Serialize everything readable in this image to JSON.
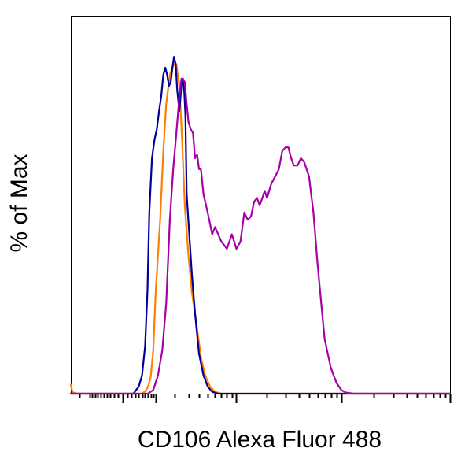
{
  "chart_data": {
    "type": "line",
    "title": "",
    "xlabel": "CD106 Alexa Fluor 488",
    "ylabel": "% of Max",
    "x_scale": "log",
    "xlim": [
      -200,
      100000
    ],
    "ylim": [
      0,
      100
    ],
    "grid": false,
    "legend": "none",
    "x_major_ticks": [
      0,
      100,
      1000,
      10000,
      100000
    ],
    "x_minor_ticks": [
      -150,
      -100,
      -90,
      -80,
      -70,
      -60,
      -50,
      -40,
      -30,
      -20,
      -10,
      10,
      20,
      30,
      40,
      50,
      60,
      70,
      80,
      90,
      200,
      300,
      400,
      500,
      600,
      700,
      800,
      900,
      2000,
      3000,
      4000,
      5000,
      6000,
      7000,
      8000,
      9000,
      20000,
      30000,
      40000,
      50000,
      60000,
      70000,
      80000,
      90000
    ],
    "series": [
      {
        "color": "#ff8000",
        "points": [
          [
            -200,
            2.5
          ],
          [
            -190,
            0.5
          ],
          [
            -170,
            0
          ],
          [
            50,
            0
          ],
          [
            60,
            0.6
          ],
          [
            70,
            1.9
          ],
          [
            80,
            4.5
          ],
          [
            90,
            12
          ],
          [
            100,
            28
          ],
          [
            120,
            48
          ],
          [
            135,
            67
          ],
          [
            150,
            80
          ],
          [
            170,
            88
          ],
          [
            185,
            90
          ],
          [
            195,
            91
          ],
          [
            210,
            91
          ],
          [
            230,
            85
          ],
          [
            250,
            70
          ],
          [
            270,
            52
          ],
          [
            300,
            38
          ],
          [
            330,
            28
          ],
          [
            380,
            18
          ],
          [
            420,
            10
          ],
          [
            470,
            5
          ],
          [
            530,
            2
          ],
          [
            600,
            0.5
          ],
          [
            700,
            0
          ],
          [
            100000,
            0
          ]
        ]
      },
      {
        "color": "#000099",
        "points": [
          [
            -200,
            0
          ],
          [
            25,
            0
          ],
          [
            40,
            2
          ],
          [
            50,
            5
          ],
          [
            60,
            13
          ],
          [
            68,
            28
          ],
          [
            75,
            50
          ],
          [
            85,
            65
          ],
          [
            95,
            70
          ],
          [
            105,
            73
          ],
          [
            115,
            78
          ],
          [
            125,
            82
          ],
          [
            135,
            88
          ],
          [
            145,
            90
          ],
          [
            155,
            88
          ],
          [
            165,
            85
          ],
          [
            175,
            86
          ],
          [
            185,
            90
          ],
          [
            195,
            93
          ],
          [
            205,
            91
          ],
          [
            215,
            84
          ],
          [
            230,
            78
          ],
          [
            245,
            85
          ],
          [
            255,
            87
          ],
          [
            265,
            84
          ],
          [
            275,
            77
          ],
          [
            285,
            55
          ],
          [
            305,
            45
          ],
          [
            330,
            33
          ],
          [
            360,
            22
          ],
          [
            400,
            11
          ],
          [
            450,
            5
          ],
          [
            500,
            2
          ],
          [
            560,
            0.5
          ],
          [
            650,
            0
          ],
          [
            100000,
            0
          ]
        ]
      },
      {
        "color": "#a600a6",
        "points": [
          [
            -200,
            0
          ],
          [
            70,
            0
          ],
          [
            90,
            1
          ],
          [
            110,
            5
          ],
          [
            130,
            12
          ],
          [
            150,
            25
          ],
          [
            170,
            48
          ],
          [
            190,
            62
          ],
          [
            210,
            72
          ],
          [
            230,
            82
          ],
          [
            245,
            87
          ],
          [
            255,
            87
          ],
          [
            270,
            86
          ],
          [
            285,
            80
          ],
          [
            300,
            75
          ],
          [
            320,
            73
          ],
          [
            340,
            72
          ],
          [
            360,
            65
          ],
          [
            380,
            66
          ],
          [
            400,
            62
          ],
          [
            420,
            62
          ],
          [
            450,
            55
          ],
          [
            500,
            50
          ],
          [
            530,
            47
          ],
          [
            560,
            44
          ],
          [
            600,
            46
          ],
          [
            650,
            44
          ],
          [
            700,
            42
          ],
          [
            750,
            41
          ],
          [
            800,
            40
          ],
          [
            850,
            42
          ],
          [
            900,
            44
          ],
          [
            950,
            42
          ],
          [
            1000,
            40
          ],
          [
            1100,
            42
          ],
          [
            1200,
            50
          ],
          [
            1300,
            48
          ],
          [
            1400,
            49
          ],
          [
            1500,
            53
          ],
          [
            1600,
            54
          ],
          [
            1700,
            52
          ],
          [
            1800,
            54
          ],
          [
            1900,
            56
          ],
          [
            2000,
            54
          ],
          [
            2200,
            58
          ],
          [
            2400,
            60
          ],
          [
            2600,
            62
          ],
          [
            2800,
            67
          ],
          [
            3000,
            68
          ],
          [
            3200,
            68
          ],
          [
            3400,
            65
          ],
          [
            3600,
            63
          ],
          [
            3900,
            63
          ],
          [
            4200,
            65
          ],
          [
            4500,
            64
          ],
          [
            5000,
            60
          ],
          [
            5500,
            50
          ],
          [
            6000,
            36
          ],
          [
            6500,
            25
          ],
          [
            7000,
            15
          ],
          [
            8000,
            7
          ],
          [
            9000,
            3
          ],
          [
            10000,
            1
          ],
          [
            11000,
            0.3
          ],
          [
            13000,
            0
          ],
          [
            100000,
            0
          ]
        ]
      }
    ]
  }
}
